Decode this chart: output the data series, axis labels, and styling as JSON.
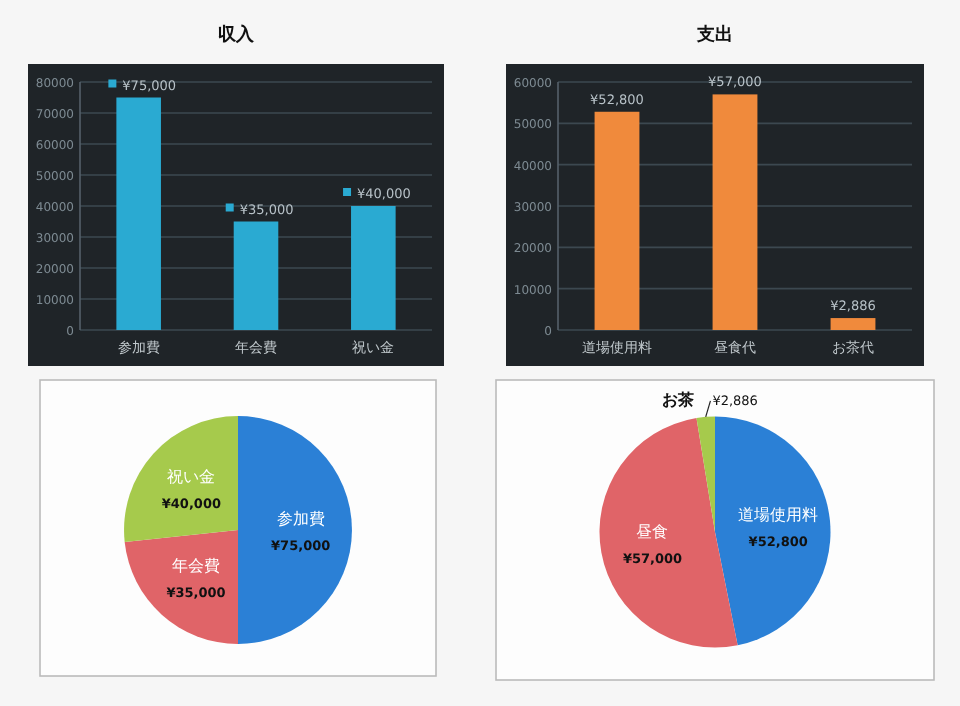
{
  "chart_data": [
    {
      "type": "bar",
      "title": "収入",
      "categories": [
        "参加費",
        "年会費",
        "祝い金"
      ],
      "values": [
        75000,
        35000,
        40000
      ],
      "color": "#2aaad2",
      "ylim": [
        0,
        80000
      ],
      "yticks": [
        0,
        10000,
        20000,
        30000,
        40000,
        50000,
        60000,
        70000,
        80000
      ],
      "grid": "y",
      "marker": "square",
      "value_labels": [
        "¥75,000",
        "¥35,000",
        "¥40,000"
      ]
    },
    {
      "type": "bar",
      "title": "支出",
      "categories": [
        "道場使用料",
        "昼食代",
        "お茶代"
      ],
      "values": [
        52800,
        57000,
        2886
      ],
      "color": "#f08a3c",
      "ylim": [
        0,
        60000
      ],
      "yticks": [
        0,
        10000,
        20000,
        30000,
        40000,
        50000,
        60000
      ],
      "grid": "y",
      "value_labels": [
        "¥52,800",
        "¥57,000",
        "¥2,886"
      ]
    },
    {
      "type": "pie",
      "categories": [
        "参加費",
        "年会費",
        "祝い金"
      ],
      "values": [
        75000,
        35000,
        40000
      ],
      "colors": [
        "#2b80d6",
        "#e06468",
        "#a6ca4c"
      ],
      "value_labels": [
        "¥75,000",
        "¥35,000",
        "¥40,000"
      ]
    },
    {
      "type": "pie",
      "categories": [
        "道場使用料",
        "昼食",
        "お茶"
      ],
      "values": [
        52800,
        57000,
        2886
      ],
      "colors": [
        "#2b80d6",
        "#e06468",
        "#a6ca4c"
      ],
      "value_labels": [
        "¥52,800",
        "¥57,000",
        "¥2,886"
      ]
    }
  ]
}
